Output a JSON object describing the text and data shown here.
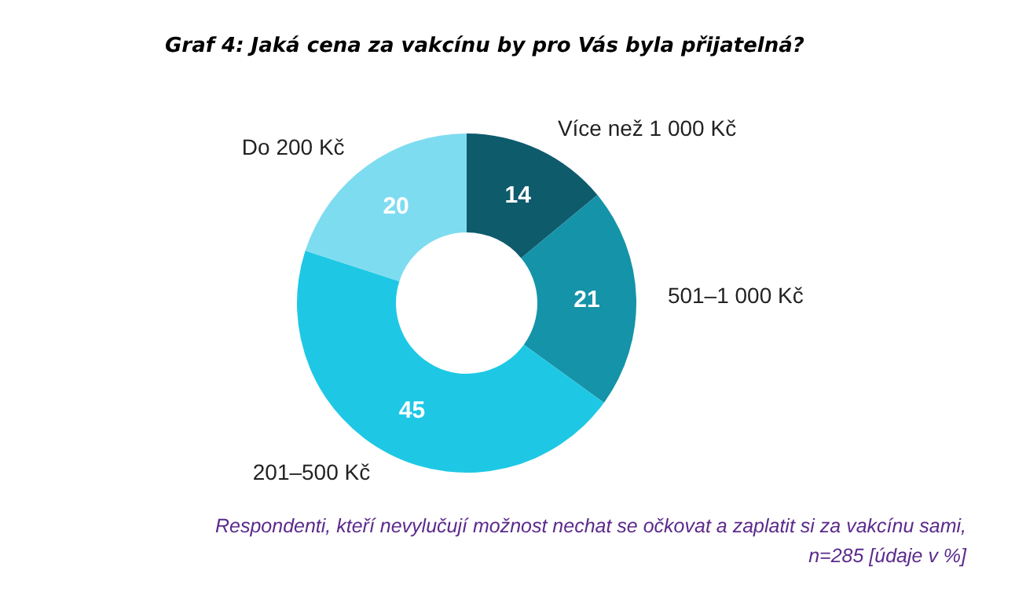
{
  "chart_data": {
    "type": "donut",
    "title": "Graf 4: Jaká cena za vakcínu by pro Vás byla přijatelná?",
    "categories": [
      "Více než 1 000 Kč",
      "501–1 000 Kč",
      "201–500 Kč",
      "Do 200 Kč"
    ],
    "values": [
      14,
      21,
      45,
      20
    ],
    "colors": [
      "#0e5b6c",
      "#1593a8",
      "#1ec8e5",
      "#7edcf0"
    ],
    "data_labels": true,
    "annotations": [
      "Respondenti, kteří nevylučují možnost nechat se očkovat a zaplatit si za vakcínu sami,",
      "n=285 [údaje v %]"
    ]
  }
}
